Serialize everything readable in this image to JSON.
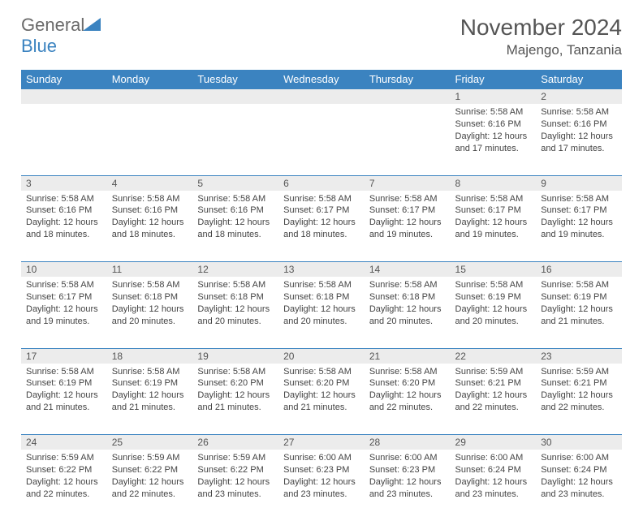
{
  "brand": {
    "general": "General",
    "blue": "Blue"
  },
  "title": "November 2024",
  "location": "Majengo, Tanzania",
  "colors": {
    "accent": "#3b83c0",
    "header_text": "#ffffff",
    "daynum_bg": "#ececec",
    "text": "#444444"
  },
  "day_headers": [
    "Sunday",
    "Monday",
    "Tuesday",
    "Wednesday",
    "Thursday",
    "Friday",
    "Saturday"
  ],
  "weeks": [
    [
      null,
      null,
      null,
      null,
      null,
      {
        "n": "1",
        "sr": "5:58 AM",
        "ss": "6:16 PM",
        "dl": "12 hours and 17 minutes."
      },
      {
        "n": "2",
        "sr": "5:58 AM",
        "ss": "6:16 PM",
        "dl": "12 hours and 17 minutes."
      }
    ],
    [
      {
        "n": "3",
        "sr": "5:58 AM",
        "ss": "6:16 PM",
        "dl": "12 hours and 18 minutes."
      },
      {
        "n": "4",
        "sr": "5:58 AM",
        "ss": "6:16 PM",
        "dl": "12 hours and 18 minutes."
      },
      {
        "n": "5",
        "sr": "5:58 AM",
        "ss": "6:16 PM",
        "dl": "12 hours and 18 minutes."
      },
      {
        "n": "6",
        "sr": "5:58 AM",
        "ss": "6:17 PM",
        "dl": "12 hours and 18 minutes."
      },
      {
        "n": "7",
        "sr": "5:58 AM",
        "ss": "6:17 PM",
        "dl": "12 hours and 19 minutes."
      },
      {
        "n": "8",
        "sr": "5:58 AM",
        "ss": "6:17 PM",
        "dl": "12 hours and 19 minutes."
      },
      {
        "n": "9",
        "sr": "5:58 AM",
        "ss": "6:17 PM",
        "dl": "12 hours and 19 minutes."
      }
    ],
    [
      {
        "n": "10",
        "sr": "5:58 AM",
        "ss": "6:17 PM",
        "dl": "12 hours and 19 minutes."
      },
      {
        "n": "11",
        "sr": "5:58 AM",
        "ss": "6:18 PM",
        "dl": "12 hours and 20 minutes."
      },
      {
        "n": "12",
        "sr": "5:58 AM",
        "ss": "6:18 PM",
        "dl": "12 hours and 20 minutes."
      },
      {
        "n": "13",
        "sr": "5:58 AM",
        "ss": "6:18 PM",
        "dl": "12 hours and 20 minutes."
      },
      {
        "n": "14",
        "sr": "5:58 AM",
        "ss": "6:18 PM",
        "dl": "12 hours and 20 minutes."
      },
      {
        "n": "15",
        "sr": "5:58 AM",
        "ss": "6:19 PM",
        "dl": "12 hours and 20 minutes."
      },
      {
        "n": "16",
        "sr": "5:58 AM",
        "ss": "6:19 PM",
        "dl": "12 hours and 21 minutes."
      }
    ],
    [
      {
        "n": "17",
        "sr": "5:58 AM",
        "ss": "6:19 PM",
        "dl": "12 hours and 21 minutes."
      },
      {
        "n": "18",
        "sr": "5:58 AM",
        "ss": "6:19 PM",
        "dl": "12 hours and 21 minutes."
      },
      {
        "n": "19",
        "sr": "5:58 AM",
        "ss": "6:20 PM",
        "dl": "12 hours and 21 minutes."
      },
      {
        "n": "20",
        "sr": "5:58 AM",
        "ss": "6:20 PM",
        "dl": "12 hours and 21 minutes."
      },
      {
        "n": "21",
        "sr": "5:58 AM",
        "ss": "6:20 PM",
        "dl": "12 hours and 22 minutes."
      },
      {
        "n": "22",
        "sr": "5:59 AM",
        "ss": "6:21 PM",
        "dl": "12 hours and 22 minutes."
      },
      {
        "n": "23",
        "sr": "5:59 AM",
        "ss": "6:21 PM",
        "dl": "12 hours and 22 minutes."
      }
    ],
    [
      {
        "n": "24",
        "sr": "5:59 AM",
        "ss": "6:22 PM",
        "dl": "12 hours and 22 minutes."
      },
      {
        "n": "25",
        "sr": "5:59 AM",
        "ss": "6:22 PM",
        "dl": "12 hours and 22 minutes."
      },
      {
        "n": "26",
        "sr": "5:59 AM",
        "ss": "6:22 PM",
        "dl": "12 hours and 23 minutes."
      },
      {
        "n": "27",
        "sr": "6:00 AM",
        "ss": "6:23 PM",
        "dl": "12 hours and 23 minutes."
      },
      {
        "n": "28",
        "sr": "6:00 AM",
        "ss": "6:23 PM",
        "dl": "12 hours and 23 minutes."
      },
      {
        "n": "29",
        "sr": "6:00 AM",
        "ss": "6:24 PM",
        "dl": "12 hours and 23 minutes."
      },
      {
        "n": "30",
        "sr": "6:00 AM",
        "ss": "6:24 PM",
        "dl": "12 hours and 23 minutes."
      }
    ]
  ],
  "labels": {
    "sunrise": "Sunrise: ",
    "sunset": "Sunset: ",
    "daylight": "Daylight: "
  }
}
